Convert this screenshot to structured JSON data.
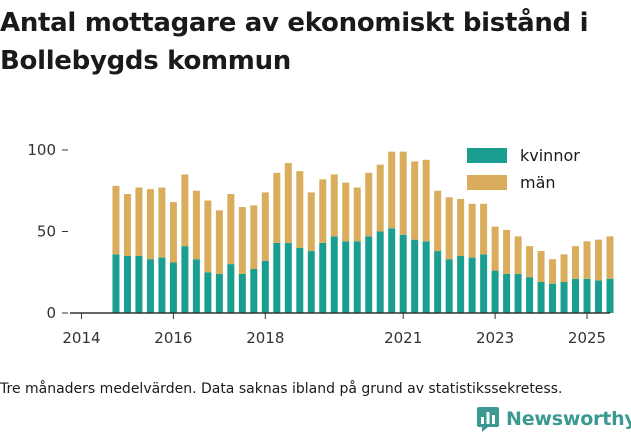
{
  "title": "Antal mottagare av ekonomiskt bistånd i Bollebygds kommun",
  "footnote": "Tre månaders medelvärden. Data saknas ibland på grund av statistikssekretess.",
  "brand": {
    "name": "Newsworthy",
    "icon": "bar-chart-logo-icon"
  },
  "colors": {
    "kvinnor": "#1a9e8f",
    "man": "#d9ad5b",
    "axis": "#333333",
    "grid": "#dddddd"
  },
  "chart_data": {
    "type": "bar",
    "stacked": true,
    "ylim": [
      0,
      100
    ],
    "yticks": [
      0,
      50,
      100
    ],
    "xlim": [
      2013.75,
      2025.5
    ],
    "xticks": [
      2014,
      2016,
      2018,
      2021,
      2023,
      2025
    ],
    "grid": false,
    "legend_position": "top-right",
    "x": [
      2014.75,
      2015.0,
      2015.25,
      2015.5,
      2015.75,
      2016.0,
      2016.25,
      2016.5,
      2016.75,
      2017.0,
      2017.25,
      2017.5,
      2017.75,
      2018.0,
      2018.25,
      2018.5,
      2018.75,
      2019.0,
      2019.25,
      2019.5,
      2019.75,
      2020.0,
      2020.25,
      2020.5,
      2020.75,
      2021.0,
      2021.25,
      2021.5,
      2021.75,
      2022.0,
      2022.25,
      2022.5,
      2022.75,
      2023.0,
      2023.25,
      2023.5,
      2023.75,
      2024.0,
      2024.25,
      2024.5,
      2024.75,
      2025.0,
      2025.25,
      2025.5
    ],
    "series": [
      {
        "name": "kvinnor",
        "values": [
          36,
          35,
          35,
          33,
          34,
          31,
          41,
          33,
          25,
          24,
          30,
          24,
          27,
          32,
          43,
          43,
          40,
          38,
          43,
          47,
          44,
          44,
          47,
          50,
          52,
          48,
          45,
          44,
          38,
          33,
          35,
          34,
          36,
          26,
          24,
          24,
          22,
          19,
          18,
          19,
          21,
          21,
          20,
          21
        ]
      },
      {
        "name": "män",
        "values": [
          42,
          38,
          42,
          43,
          43,
          37,
          44,
          42,
          44,
          39,
          43,
          41,
          39,
          42,
          43,
          49,
          47,
          36,
          39,
          38,
          36,
          33,
          39,
          41,
          47,
          51,
          48,
          50,
          37,
          38,
          35,
          33,
          31,
          27,
          27,
          23,
          19,
          19,
          15,
          17,
          20,
          23,
          25,
          26
        ]
      }
    ]
  }
}
